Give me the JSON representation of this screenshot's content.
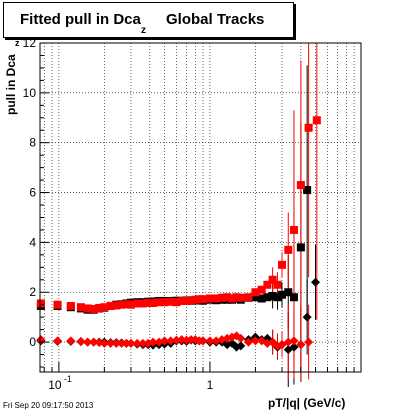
{
  "title": {
    "main": "Fitted pull in Dca",
    "sub": "z",
    "rest": "Global Tracks"
  },
  "ylabel": {
    "main": "pull in Dca",
    "sub": "z"
  },
  "xlabel": "pT/|q| (GeV/c)",
  "timestamp": "Fri Sep 20 09:17:50 2013",
  "colors": {
    "red": "#ff0000",
    "black": "#000000",
    "grid": "#000000"
  },
  "chart_data": {
    "type": "scatter",
    "x_scale": "log",
    "xlim": [
      0.075,
      10.0
    ],
    "ylim": [
      -1.2,
      12
    ],
    "grid": true,
    "x_tick_labels": [
      {
        "value": 0.1,
        "label": "10",
        "exp": "-1"
      },
      {
        "value": 1,
        "label": "1",
        "exp": ""
      }
    ],
    "y_tick_labels": [
      {
        "value": 0,
        "label": "0"
      },
      {
        "value": 2,
        "label": "2"
      },
      {
        "value": 4,
        "label": "4"
      },
      {
        "value": 6,
        "label": "6"
      },
      {
        "value": 8,
        "label": "8"
      },
      {
        "value": 10,
        "label": "10"
      },
      {
        "value": 12,
        "label": "12"
      }
    ],
    "series": [
      {
        "color": "black",
        "marker": "square",
        "points": [
          [
            0.076,
            1.45
          ],
          [
            0.098,
            1.45
          ],
          [
            0.12,
            1.4
          ],
          [
            0.14,
            1.35
          ],
          [
            0.155,
            1.3
          ],
          [
            0.17,
            1.3
          ],
          [
            0.185,
            1.35
          ],
          [
            0.2,
            1.38
          ],
          [
            0.22,
            1.45
          ],
          [
            0.24,
            1.5
          ],
          [
            0.26,
            1.52
          ],
          [
            0.28,
            1.55
          ],
          [
            0.3,
            1.58
          ],
          [
            0.33,
            1.6
          ],
          [
            0.36,
            1.6
          ],
          [
            0.39,
            1.62
          ],
          [
            0.42,
            1.63
          ],
          [
            0.46,
            1.65
          ],
          [
            0.5,
            1.65
          ],
          [
            0.55,
            1.65
          ],
          [
            0.6,
            1.66
          ],
          [
            0.65,
            1.66
          ],
          [
            0.7,
            1.67
          ],
          [
            0.75,
            1.66
          ],
          [
            0.8,
            1.67
          ],
          [
            0.85,
            1.67
          ],
          [
            0.9,
            1.66
          ],
          [
            1.0,
            1.7
          ],
          [
            1.1,
            1.68
          ],
          [
            1.2,
            1.7
          ],
          [
            1.3,
            1.7
          ],
          [
            1.4,
            1.7
          ],
          [
            1.5,
            1.75
          ],
          [
            1.6,
            1.7
          ],
          [
            1.8,
            1.78
          ],
          [
            2.0,
            1.8
          ],
          [
            2.2,
            1.75
          ],
          [
            2.4,
            1.8
          ],
          [
            2.6,
            1.85
          ],
          [
            2.8,
            1.8
          ],
          [
            3.0,
            1.9
          ],
          [
            3.3,
            2.0
          ],
          [
            3.6,
            1.8
          ],
          [
            4.0,
            3.8
          ],
          [
            4.4,
            6.1
          ]
        ]
      },
      {
        "color": "red",
        "marker": "square",
        "points": [
          [
            0.076,
            1.55
          ],
          [
            0.098,
            1.5
          ],
          [
            0.12,
            1.45
          ],
          [
            0.14,
            1.4
          ],
          [
            0.155,
            1.35
          ],
          [
            0.17,
            1.33
          ],
          [
            0.185,
            1.37
          ],
          [
            0.2,
            1.4
          ],
          [
            0.22,
            1.45
          ],
          [
            0.24,
            1.47
          ],
          [
            0.26,
            1.5
          ],
          [
            0.28,
            1.52
          ],
          [
            0.3,
            1.5
          ],
          [
            0.33,
            1.55
          ],
          [
            0.36,
            1.55
          ],
          [
            0.39,
            1.57
          ],
          [
            0.42,
            1.57
          ],
          [
            0.46,
            1.6
          ],
          [
            0.5,
            1.6
          ],
          [
            0.55,
            1.62
          ],
          [
            0.6,
            1.6
          ],
          [
            0.65,
            1.65
          ],
          [
            0.7,
            1.65
          ],
          [
            0.75,
            1.68
          ],
          [
            0.8,
            1.7
          ],
          [
            0.85,
            1.72
          ],
          [
            0.9,
            1.72
          ],
          [
            1.0,
            1.75
          ],
          [
            1.1,
            1.75
          ],
          [
            1.2,
            1.78
          ],
          [
            1.3,
            1.8
          ],
          [
            1.4,
            1.75
          ],
          [
            1.5,
            1.8
          ],
          [
            1.6,
            1.78
          ],
          [
            1.8,
            1.8
          ],
          [
            2.0,
            2.0
          ],
          [
            2.2,
            2.1
          ],
          [
            2.4,
            2.3
          ],
          [
            2.6,
            2.5
          ],
          [
            2.8,
            2.3
          ],
          [
            3.0,
            3.1
          ],
          [
            3.3,
            3.7
          ],
          [
            3.6,
            4.5
          ],
          [
            4.0,
            6.3
          ],
          [
            4.5,
            8.6
          ],
          [
            5.1,
            8.9
          ]
        ]
      },
      {
        "color": "black",
        "marker": "diamond",
        "points": [
          [
            0.076,
            0.05
          ],
          [
            0.098,
            0.03
          ],
          [
            0.12,
            0.03
          ],
          [
            0.14,
            0.02
          ],
          [
            0.155,
            0.0
          ],
          [
            0.17,
            0.0
          ],
          [
            0.185,
            0.0
          ],
          [
            0.2,
            0.0
          ],
          [
            0.22,
            -0.02
          ],
          [
            0.24,
            -0.02
          ],
          [
            0.26,
            -0.03
          ],
          [
            0.28,
            -0.05
          ],
          [
            0.3,
            -0.05
          ],
          [
            0.33,
            -0.08
          ],
          [
            0.36,
            -0.1
          ],
          [
            0.39,
            -0.1
          ],
          [
            0.42,
            -0.12
          ],
          [
            0.46,
            -0.1
          ],
          [
            0.5,
            -0.08
          ],
          [
            0.55,
            -0.05
          ],
          [
            0.6,
            0.05
          ],
          [
            0.65,
            0.05
          ],
          [
            0.7,
            0.03
          ],
          [
            0.75,
            0.08
          ],
          [
            0.8,
            0.05
          ],
          [
            0.85,
            0.05
          ],
          [
            0.9,
            0.05
          ],
          [
            1.0,
            0.0
          ],
          [
            1.1,
            0.0
          ],
          [
            1.2,
            0.0
          ],
          [
            1.3,
            -0.1
          ],
          [
            1.4,
            -0.05
          ],
          [
            1.5,
            -0.2
          ],
          [
            1.6,
            -0.15
          ],
          [
            1.8,
            0.1
          ],
          [
            2.0,
            0.2
          ],
          [
            2.2,
            0.1
          ],
          [
            2.4,
            0.15
          ],
          [
            2.6,
            0.0
          ],
          [
            2.8,
            -0.2
          ],
          [
            3.0,
            -0.1
          ],
          [
            3.3,
            -0.3
          ],
          [
            3.6,
            -0.2
          ],
          [
            4.0,
            -0.1
          ],
          [
            4.4,
            1.0
          ],
          [
            5.0,
            2.4
          ]
        ]
      },
      {
        "color": "red",
        "marker": "diamond",
        "points": [
          [
            0.076,
            0.1
          ],
          [
            0.098,
            0.05
          ],
          [
            0.12,
            0.05
          ],
          [
            0.14,
            0.03
          ],
          [
            0.155,
            0.0
          ],
          [
            0.17,
            0.0
          ],
          [
            0.185,
            -0.02
          ],
          [
            0.2,
            -0.05
          ],
          [
            0.22,
            -0.05
          ],
          [
            0.24,
            -0.05
          ],
          [
            0.26,
            -0.05
          ],
          [
            0.28,
            -0.05
          ],
          [
            0.3,
            -0.05
          ],
          [
            0.33,
            -0.05
          ],
          [
            0.36,
            -0.05
          ],
          [
            0.39,
            -0.05
          ],
          [
            0.42,
            0.0
          ],
          [
            0.46,
            0.0
          ],
          [
            0.5,
            0.05
          ],
          [
            0.55,
            0.05
          ],
          [
            0.6,
            0.08
          ],
          [
            0.65,
            0.1
          ],
          [
            0.7,
            0.08
          ],
          [
            0.75,
            0.1
          ],
          [
            0.8,
            0.1
          ],
          [
            0.85,
            0.05
          ],
          [
            0.9,
            0.05
          ],
          [
            1.0,
            0.05
          ],
          [
            1.1,
            0.05
          ],
          [
            1.2,
            0.1
          ],
          [
            1.3,
            0.15
          ],
          [
            1.4,
            0.2
          ],
          [
            1.5,
            0.25
          ],
          [
            1.6,
            0.15
          ],
          [
            1.8,
            0.0
          ],
          [
            2.0,
            0.05
          ],
          [
            2.2,
            0.05
          ],
          [
            2.4,
            -0.05
          ],
          [
            2.6,
            0.0
          ],
          [
            2.8,
            -0.15
          ],
          [
            3.0,
            -0.1
          ],
          [
            3.3,
            0.0
          ],
          [
            3.6,
            0.05
          ],
          [
            4.0,
            -0.1
          ],
          [
            4.5,
            0.0
          ]
        ]
      }
    ]
  }
}
